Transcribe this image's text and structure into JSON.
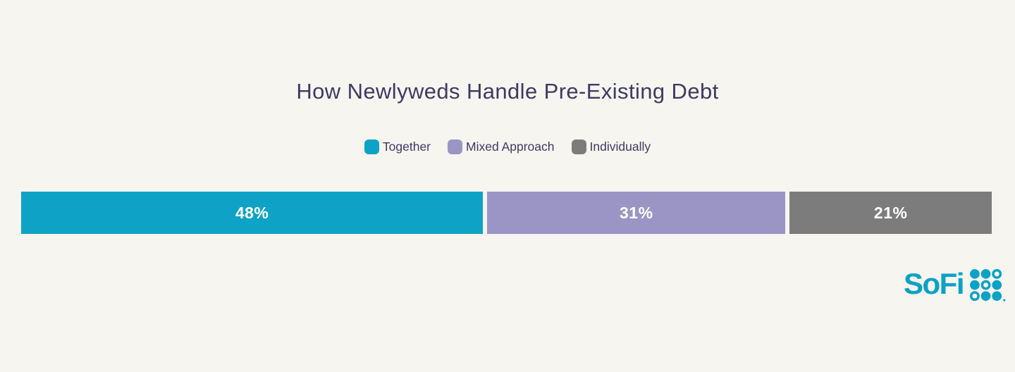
{
  "page": {
    "background_color": "#f7f5f0",
    "title_color": "#3d3a62"
  },
  "chart_data": {
    "type": "bar",
    "variant": "single horizontal stacked bar (100%)",
    "title": "How Newlyweds Handle Pre-Existing Debt",
    "categories": [
      "Together",
      "Mixed Approach",
      "Individually"
    ],
    "values": [
      48,
      31,
      21
    ],
    "unit": "%",
    "xlim": [
      0,
      100
    ],
    "series": [
      {
        "name": "Together",
        "value": 48,
        "label": "48%",
        "color": "#0ea3c6"
      },
      {
        "name": "Mixed Approach",
        "value": 31,
        "label": "31%",
        "color": "#9b95c5"
      },
      {
        "name": "Individually",
        "value": 21,
        "label": "21%",
        "color": "#7d7c7c"
      }
    ],
    "legend_position": "top-center",
    "value_label_style": "inside segment, centered, white, bold",
    "grid": false,
    "axes_visible": false
  },
  "branding": {
    "logo_text": "SoFi",
    "logo_color": "#0ba2c6"
  }
}
